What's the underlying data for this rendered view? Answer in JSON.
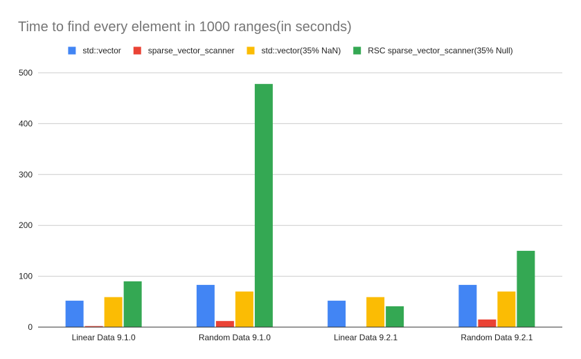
{
  "chart_data": {
    "type": "bar",
    "title": "Time to find every element in 1000 ranges(in seconds)",
    "xlabel": "",
    "ylabel": "",
    "categories": [
      "Linear Data 9.1.0",
      "Random Data 9.1.0",
      "Linear Data 9.2.1",
      "Random Data 9.2.1"
    ],
    "series": [
      {
        "name": "std::vector",
        "color": "#4285f4",
        "values": [
          52,
          83,
          52,
          83
        ]
      },
      {
        "name": "sparse_vector_scanner",
        "color": "#ea4335",
        "values": [
          2,
          12,
          0,
          15
        ]
      },
      {
        "name": "std::vector(35% NaN)",
        "color": "#fbbc04",
        "values": [
          59,
          70,
          59,
          70
        ]
      },
      {
        "name": "RSC sparse_vector_scanner(35% Null)",
        "color": "#34a853",
        "values": [
          90,
          478,
          41,
          150
        ]
      }
    ],
    "ylim": [
      0,
      500
    ],
    "yticks": [
      "0",
      "100",
      "200",
      "300",
      "400",
      "500"
    ],
    "grid": true,
    "legend_position": "top"
  }
}
